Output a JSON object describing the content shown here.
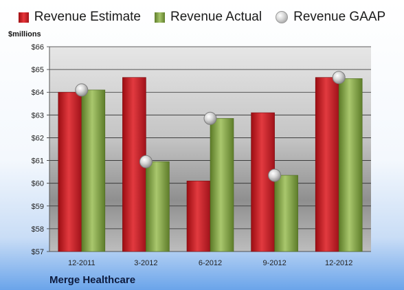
{
  "chart_data": {
    "type": "bar",
    "categories": [
      "12-2011",
      "3-2012",
      "6-2012",
      "9-2012",
      "12-2012"
    ],
    "series": [
      {
        "name": "Revenue Estimate",
        "kind": "bar",
        "color": "#d42a2f",
        "values": [
          64.0,
          64.65,
          60.1,
          63.1,
          64.65
        ]
      },
      {
        "name": "Revenue Actual",
        "kind": "bar",
        "color": "#8fb04f",
        "values": [
          64.1,
          60.95,
          62.85,
          60.35,
          64.6
        ]
      },
      {
        "name": "Revenue GAAP",
        "kind": "marker",
        "color": "#bfbfbf",
        "values": [
          64.1,
          60.95,
          62.85,
          60.35,
          64.65
        ]
      }
    ],
    "ylabel": "$millions",
    "ylim": [
      57,
      66
    ],
    "yticks": [
      "$57",
      "$58",
      "$59",
      "$60",
      "$61",
      "$62",
      "$63",
      "$64",
      "$65",
      "$66"
    ],
    "grid": true,
    "legend_position": "top"
  },
  "footer": {
    "company": "Merge Healthcare"
  }
}
